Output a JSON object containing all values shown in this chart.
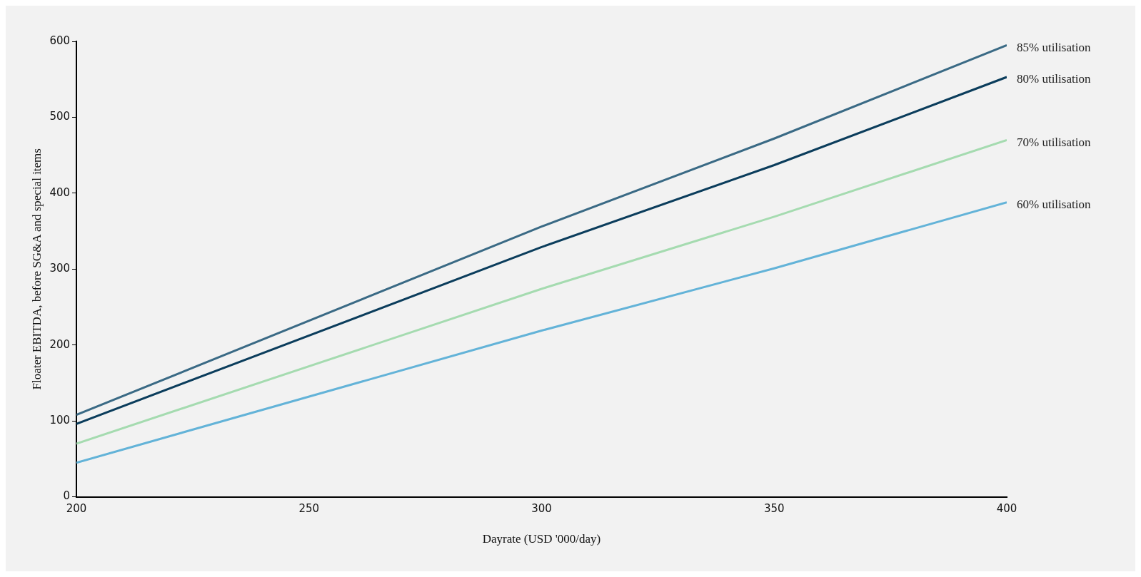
{
  "chart_data": {
    "type": "line",
    "xlabel": "Dayrate (USD '000/day)",
    "ylabel": "Floater EBITDA, before SG&A and special items",
    "x": [
      200,
      300,
      350,
      400
    ],
    "xlim": [
      200,
      400
    ],
    "xticks": [
      200,
      250,
      300,
      350,
      400
    ],
    "ylim": [
      0,
      600
    ],
    "yticks": [
      0,
      100,
      200,
      300,
      400,
      500,
      600
    ],
    "grid": false,
    "legend": false,
    "marker": "none",
    "series": [
      {
        "name": "85% utilisation",
        "color": "#3a6a85",
        "values": [
          108,
          356,
          472,
          595
        ]
      },
      {
        "name": "80% utilisation",
        "color": "#0b3d5c",
        "values": [
          96,
          329,
          437,
          553
        ]
      },
      {
        "name": "70% utilisation",
        "color": "#a5dbb0",
        "values": [
          70,
          274,
          369,
          470
        ]
      },
      {
        "name": "60% utilisation",
        "color": "#63b3d8",
        "values": [
          45,
          219,
          301,
          388
        ]
      }
    ]
  }
}
